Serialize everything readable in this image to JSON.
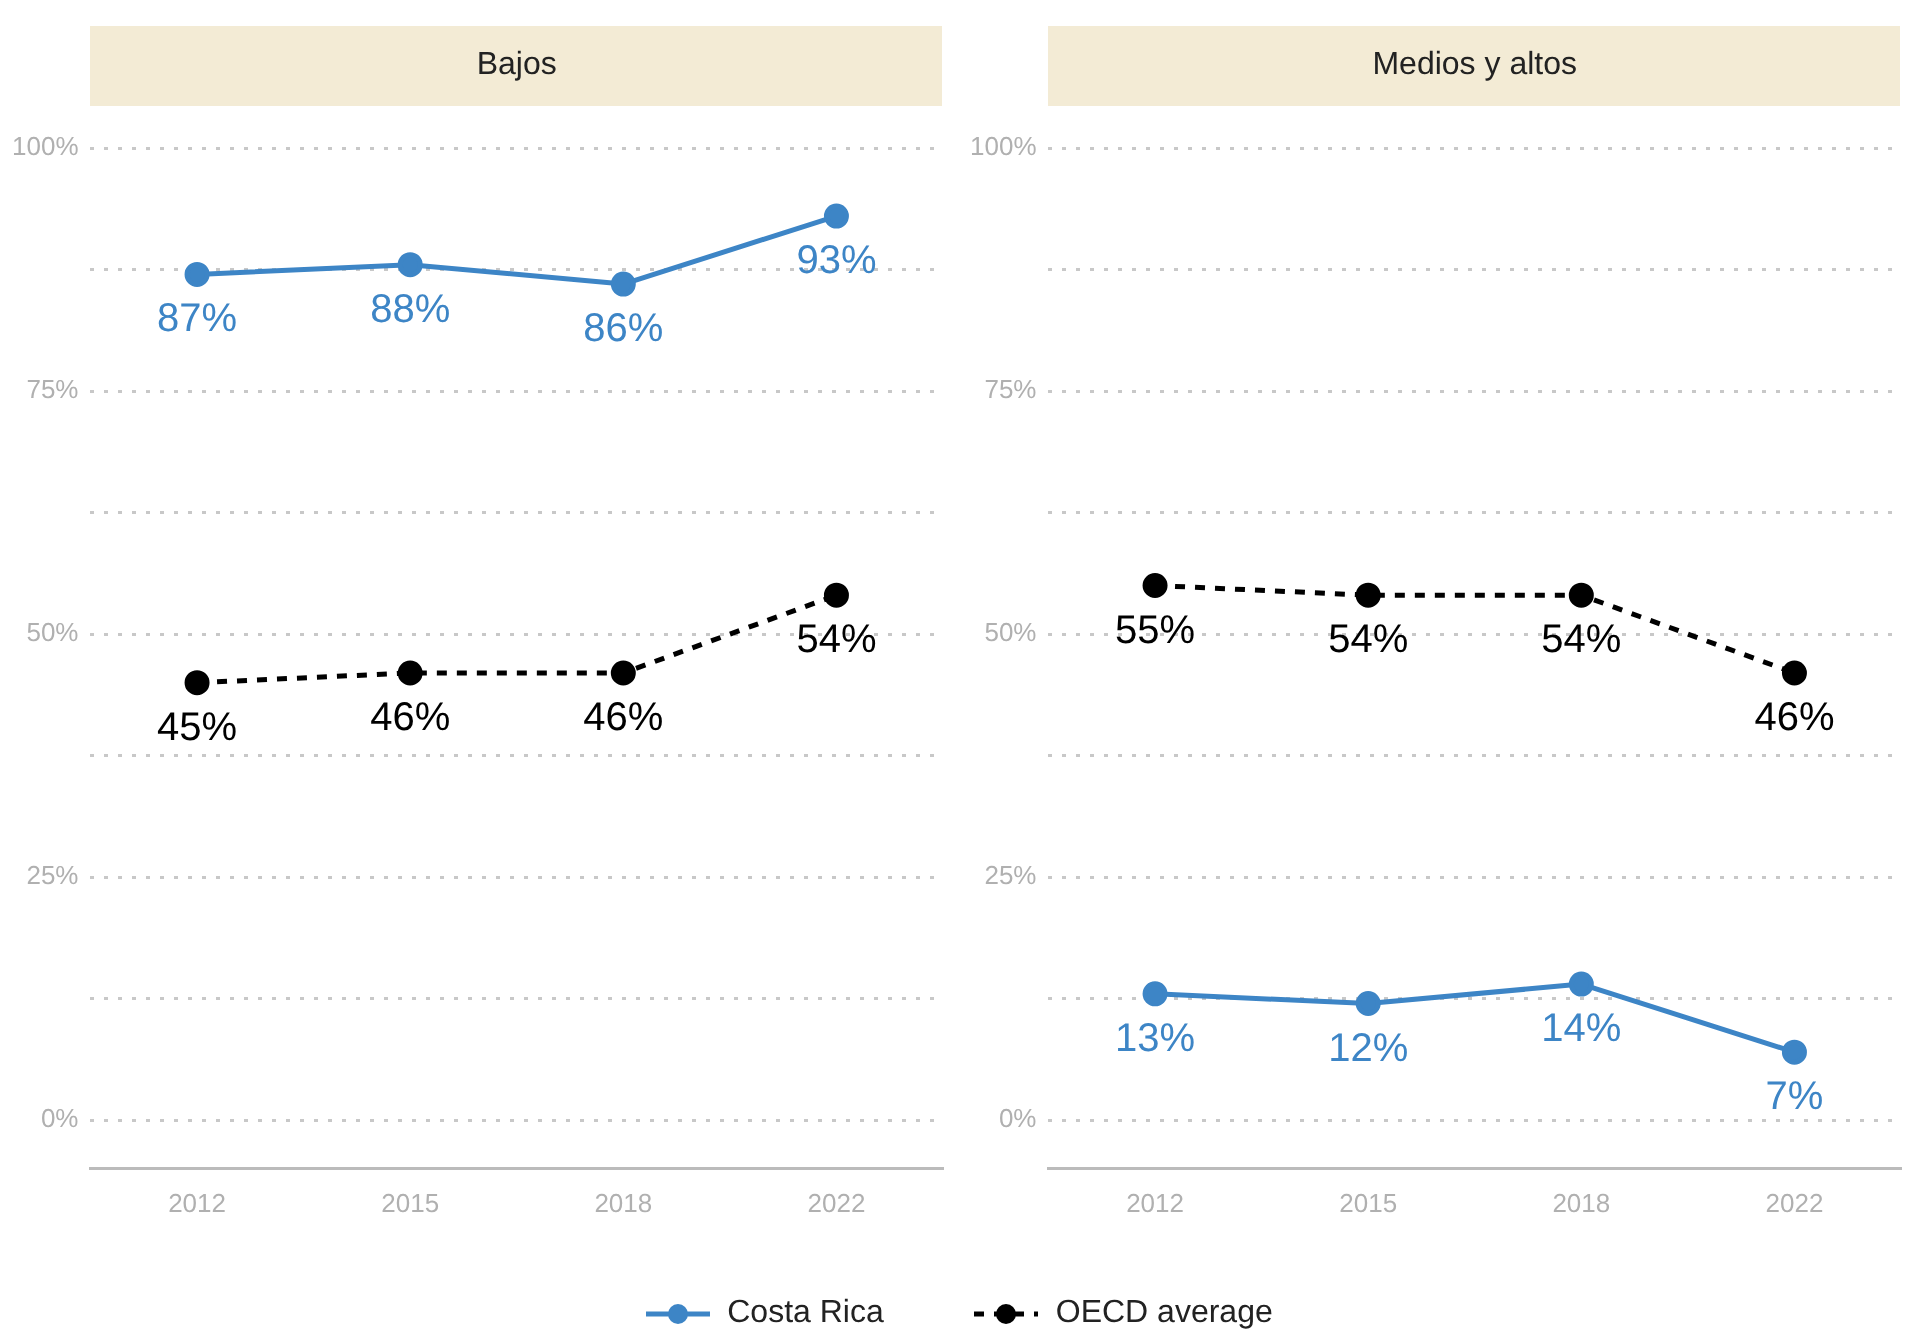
{
  "chart_data": [
    {
      "type": "line",
      "title": "Bajos",
      "categories": [
        "2012",
        "2015",
        "2018",
        "2022"
      ],
      "series": [
        {
          "name": "Costa Rica",
          "color": "#3d85c6",
          "values": [
            87,
            88,
            86,
            93
          ],
          "value_labels": [
            "87%",
            "88%",
            "86%",
            "93%"
          ],
          "line_style": "solid"
        },
        {
          "name": "OECD average",
          "color": "#000000",
          "values": [
            45,
            46,
            46,
            54
          ],
          "value_labels": [
            "45%",
            "46%",
            "46%",
            "54%"
          ],
          "line_style": "dashed"
        }
      ],
      "ylim": [
        -5,
        100
      ],
      "yticks": [
        {
          "value": 0,
          "label": "0%"
        },
        {
          "value": 12.5,
          "label": null
        },
        {
          "value": 25,
          "label": "25%"
        },
        {
          "value": 37.5,
          "label": null
        },
        {
          "value": 50,
          "label": "50%"
        },
        {
          "value": 62.5,
          "label": null
        },
        {
          "value": 75,
          "label": "75%"
        },
        {
          "value": 87.5,
          "label": null
        },
        {
          "value": 100,
          "label": "100%"
        }
      ],
      "grid": "y",
      "marker": "circle",
      "legend": "bottom"
    },
    {
      "type": "line",
      "title": "Medios y altos",
      "categories": [
        "2012",
        "2015",
        "2018",
        "2022"
      ],
      "series": [
        {
          "color": "#3d85c6",
          "values": [
            13,
            12,
            14,
            7
          ],
          "value_labels": [
            "13%",
            "12%",
            "14%",
            "7%"
          ],
          "line_style": "solid"
        },
        {
          "color": "#000000",
          "values": [
            55,
            54,
            54,
            46
          ],
          "value_labels": [
            "55%",
            "54%",
            "54%",
            "46%"
          ],
          "line_style": "dashed"
        }
      ],
      "ylim": [
        -5,
        100
      ],
      "yticks": [
        {
          "value": 0,
          "label": "0%"
        },
        {
          "value": 12.5,
          "label": null
        },
        {
          "value": 25,
          "label": "25%"
        },
        {
          "value": 37.5,
          "label": null
        },
        {
          "value": 50,
          "label": "50%"
        },
        {
          "value": 62.5,
          "label": null
        },
        {
          "value": 75,
          "label": "75%"
        },
        {
          "value": 87.5,
          "label": null
        },
        {
          "value": 100,
          "label": "100%"
        }
      ],
      "grid": "y",
      "marker": "circle"
    }
  ]
}
